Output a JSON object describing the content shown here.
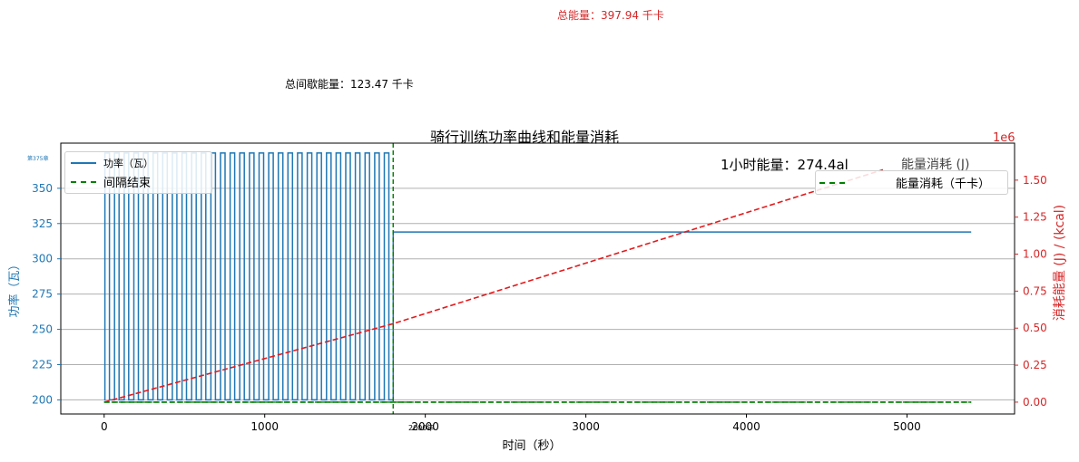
{
  "annotations": {
    "total_energy": "总能量：397.94 千卡",
    "interval_energy": "总间歇能量：123.47 千卡",
    "hour_energy": "1小时能量：274.4al",
    "right_legend_title": "能量消耗 (J)",
    "right_exponent": "1e6",
    "stray_tick_375": "第375章",
    "stray_tick_2000": "2000年"
  },
  "legend_left": {
    "power": "功率（瓦）",
    "interval_end": "间隔结束"
  },
  "legend_right": {
    "energy": "能量消耗（千卡）"
  },
  "colors": {
    "power": "#1f77b4",
    "energy": "#e31a1c",
    "interval_line": "#008000",
    "right_axis": "#d62728"
  },
  "chart_data": {
    "type": "line",
    "title": "骑行训练功率曲线和能量消耗",
    "xlabel": "时间（秒）",
    "ylabel": "功率（瓦）",
    "ylabel_right": "消耗能量 (J) / (kcal)",
    "xlim": [
      -270,
      5670
    ],
    "ylim": [
      190,
      382
    ],
    "ylim_right": [
      -0.08,
      1.75
    ],
    "right_axis_exponent": "1e6",
    "grid": "y",
    "legend_position": "top-left",
    "x_ticks": [
      0,
      1000,
      2000,
      3000,
      4000,
      5000
    ],
    "y_ticks": [
      200,
      225,
      250,
      275,
      300,
      325,
      350
    ],
    "y_ticks_right": [
      0.0,
      0.25,
      0.5,
      0.75,
      1.0,
      1.25,
      1.5
    ],
    "x_tick_labels": [
      "0",
      "1000",
      "2000",
      "3000",
      "4000",
      "5000"
    ],
    "y_tick_labels": [
      "200",
      "225",
      "250",
      "275",
      "300",
      "325",
      "350"
    ],
    "y_tick_labels_right": [
      "0.00",
      "0.25",
      "0.50",
      "0.75",
      "1.00",
      "1.25",
      "1.50"
    ],
    "series": [
      {
        "name": "功率（瓦）",
        "kind": "interval_square_wave",
        "interval_start": 0,
        "interval_end": 1800,
        "interval_high": 375,
        "interval_low": 200,
        "cycles": 30,
        "steady_start": 1800,
        "steady_end": 5400,
        "steady_value": 319
      },
      {
        "name": "能量消耗（千卡）",
        "axis": "right",
        "x": [
          0,
          1800,
          4850
        ],
        "values": [
          0.0,
          0.53,
          1.57
        ]
      },
      {
        "name": "能量消耗 (J)",
        "axis": "right",
        "x": [
          0,
          5400
        ],
        "values": [
          0.0,
          0.0
        ]
      }
    ],
    "vlines": [
      {
        "name": "间隔结束",
        "x": 1800
      }
    ]
  }
}
